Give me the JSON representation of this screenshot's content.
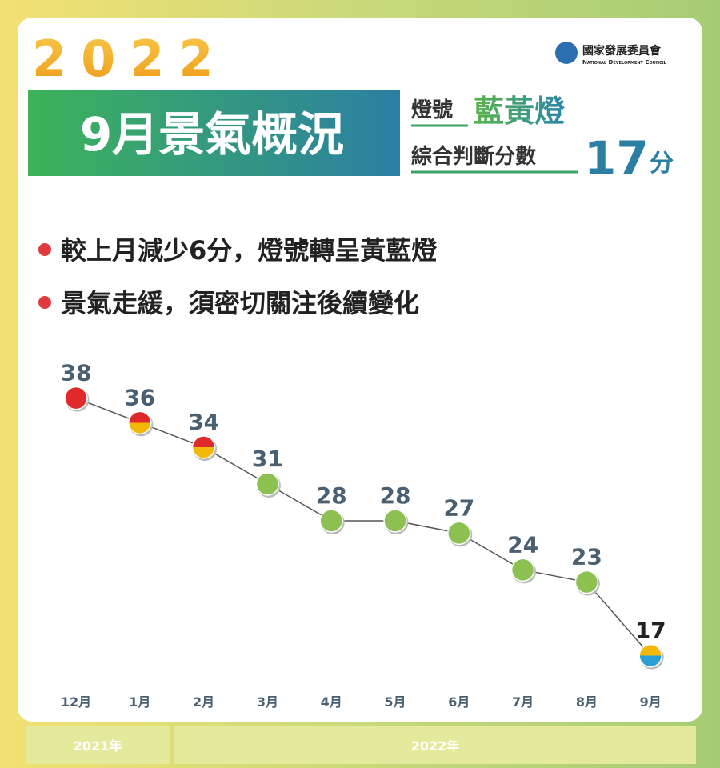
{
  "year": "2022",
  "headline": "9月景氣概況",
  "signal_label": "燈號",
  "signal_value": "藍黃燈",
  "score_label": "綜合判斷分數",
  "score_value": "17",
  "score_unit": "分",
  "org": {
    "name": "國家發展委員會",
    "english": "National Development Council"
  },
  "bullets": [
    "較上月減少6分，燈號轉呈黃藍燈",
    "景氣走緩，須密切關注後續變化"
  ],
  "year_groups": [
    "2021年",
    "2022年"
  ],
  "chart_data": {
    "type": "line",
    "categories": [
      "12月",
      "1月",
      "2月",
      "3月",
      "4月",
      "5月",
      "6月",
      "7月",
      "8月",
      "9月"
    ],
    "values": [
      38,
      36,
      34,
      31,
      28,
      28,
      27,
      24,
      23,
      17
    ],
    "point_colors": [
      [
        "#e02a2a",
        "#e02a2a"
      ],
      [
        "#e02a2a",
        "#f2b807"
      ],
      [
        "#e02a2a",
        "#f2b807"
      ],
      [
        "#8cc152",
        "#8cc152"
      ],
      [
        "#8cc152",
        "#8cc152"
      ],
      [
        "#8cc152",
        "#8cc152"
      ],
      [
        "#8cc152",
        "#8cc152"
      ],
      [
        "#8cc152",
        "#8cc152"
      ],
      [
        "#8cc152",
        "#8cc152"
      ],
      [
        "#f2b807",
        "#2a9fd6"
      ]
    ],
    "color": "#555555",
    "ylim": [
      10,
      40
    ]
  }
}
